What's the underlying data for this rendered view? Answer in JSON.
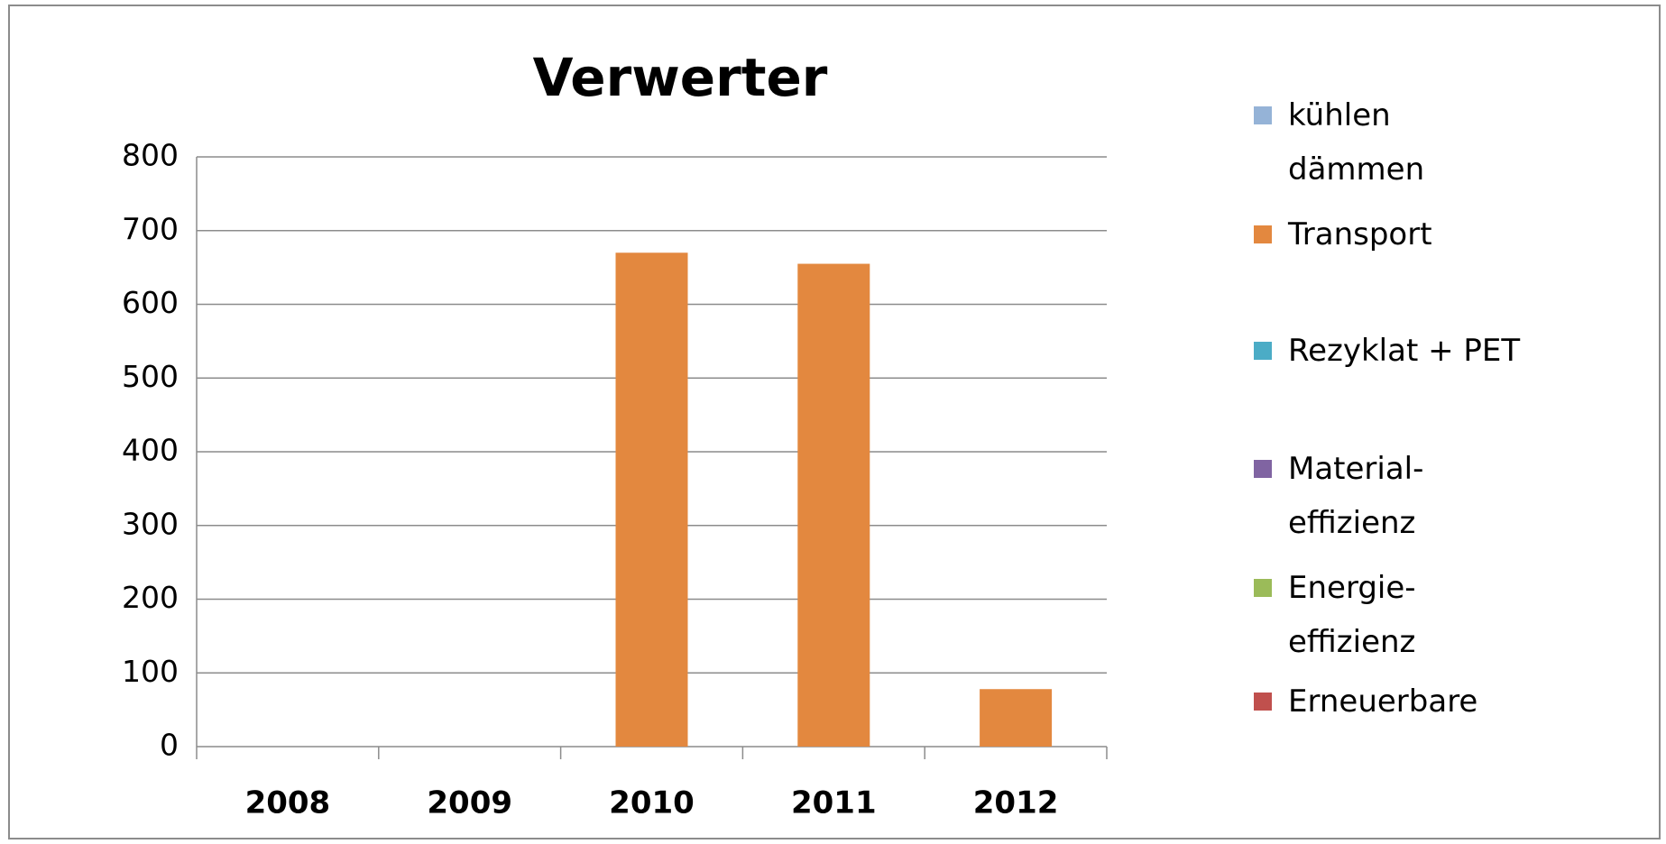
{
  "chart_data": {
    "type": "stacked_bar",
    "title": "Verwerter",
    "categories": [
      "2008",
      "2009",
      "2010",
      "2011",
      "2012"
    ],
    "series": [
      {
        "name": "kühlen dämmen",
        "color": "#95b3d7",
        "values": [
          0,
          0,
          0,
          0,
          0
        ]
      },
      {
        "name": "Transport",
        "color": "#e3883f",
        "values": [
          0,
          0,
          670,
          655,
          78
        ]
      },
      {
        "name": "Rezyklat + PET",
        "color": "#4bacc6",
        "values": [
          0,
          0,
          0,
          0,
          0
        ]
      },
      {
        "name": "Material-effizienz",
        "color": "#8064a2",
        "values": [
          0,
          0,
          0,
          0,
          0
        ]
      },
      {
        "name": "Energie-effizienz",
        "color": "#9bbb59",
        "values": [
          0,
          0,
          0,
          0,
          0
        ]
      },
      {
        "name": "Erneuerbare",
        "color": "#c0504d",
        "values": [
          0,
          0,
          0,
          0,
          0
        ]
      }
    ],
    "ylim": [
      0,
      800
    ],
    "yticks": [
      0,
      100,
      200,
      300,
      400,
      500,
      600,
      700,
      800
    ],
    "grid": true,
    "legend": "right"
  }
}
